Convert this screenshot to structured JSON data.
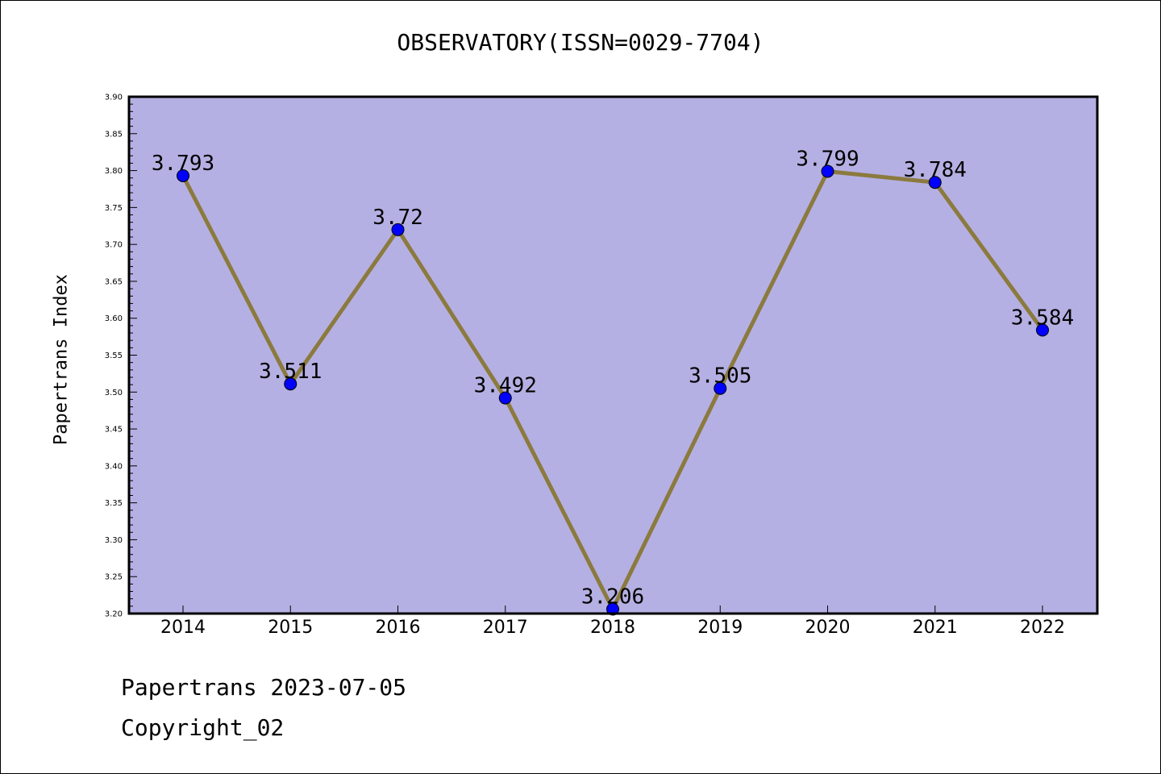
{
  "title": "OBSERVATORY(ISSN=0029-7704)",
  "footer": {
    "line1": "Papertrans 2023-07-05",
    "line2": "Copyright_02"
  },
  "colors": {
    "plot_background": "#b5b0e3",
    "line": "#8b7a3e",
    "marker": "#0000ff"
  },
  "chart_data": {
    "type": "line",
    "title": "OBSERVATORY(ISSN=0029-7704)",
    "xlabel": "",
    "ylabel": "Papertrans Index",
    "ylim": [
      3.2,
      3.9
    ],
    "yticks": [
      "3.20",
      "3.25",
      "3.30",
      "3.35",
      "3.40",
      "3.45",
      "3.50",
      "3.55",
      "3.60",
      "3.65",
      "3.70",
      "3.75",
      "3.80",
      "3.85",
      "3.90"
    ],
    "grid": false,
    "categories": [
      "2014",
      "2015",
      "2016",
      "2017",
      "2018",
      "2019",
      "2020",
      "2021",
      "2022"
    ],
    "series": [
      {
        "values": [
          3.793,
          3.511,
          3.72,
          3.492,
          3.206,
          3.505,
          3.799,
          3.784,
          3.584
        ],
        "labels": [
          "3.793",
          "3.511",
          "3.72",
          "3.492",
          "3.206",
          "3.505",
          "3.799",
          "3.784",
          "3.584"
        ]
      }
    ]
  }
}
